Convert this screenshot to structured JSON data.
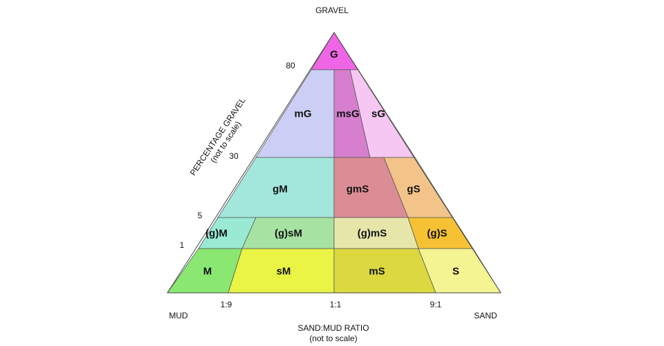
{
  "diagram": {
    "apex_labels": {
      "top": "GRAVEL",
      "left": "MUD",
      "right": "SAND"
    },
    "left_axis": {
      "title": "PERCENTAGE GRAVEL",
      "subtitle": "(not to scale)",
      "ticks": [
        "80",
        "30",
        "5",
        "1"
      ]
    },
    "bottom_axis": {
      "title": "SAND:MUD RATIO",
      "subtitle": "(not to scale)",
      "ticks": [
        "1:9",
        "1:1",
        "9:1"
      ]
    },
    "regions": {
      "G": {
        "label": "G",
        "color": "#ee66e6"
      },
      "mG": {
        "label": "mG",
        "color": "#cccff5"
      },
      "msG": {
        "label": "msG",
        "color": "#d77fcf"
      },
      "sG": {
        "label": "sG",
        "color": "#f6c7f2"
      },
      "gM": {
        "label": "gM",
        "color": "#a3e6dc"
      },
      "gmS": {
        "label": "gmS",
        "color": "#dc8c94"
      },
      "gS": {
        "label": "gS",
        "color": "#f2c48a"
      },
      "g_M": {
        "label": "(g)M",
        "color": "#9aead3"
      },
      "g_sM": {
        "label": "(g)sM",
        "color": "#a6e3a2"
      },
      "g_mS": {
        "label": "(g)mS",
        "color": "#e6e6ab"
      },
      "g_S": {
        "label": "(g)S",
        "color": "#f6c234"
      },
      "M": {
        "label": "M",
        "color": "#8ae872"
      },
      "sM": {
        "label": "sM",
        "color": "#e9f444"
      },
      "mS": {
        "label": "mS",
        "color": "#dcd840"
      },
      "S": {
        "label": "S",
        "color": "#f4f492"
      }
    }
  }
}
